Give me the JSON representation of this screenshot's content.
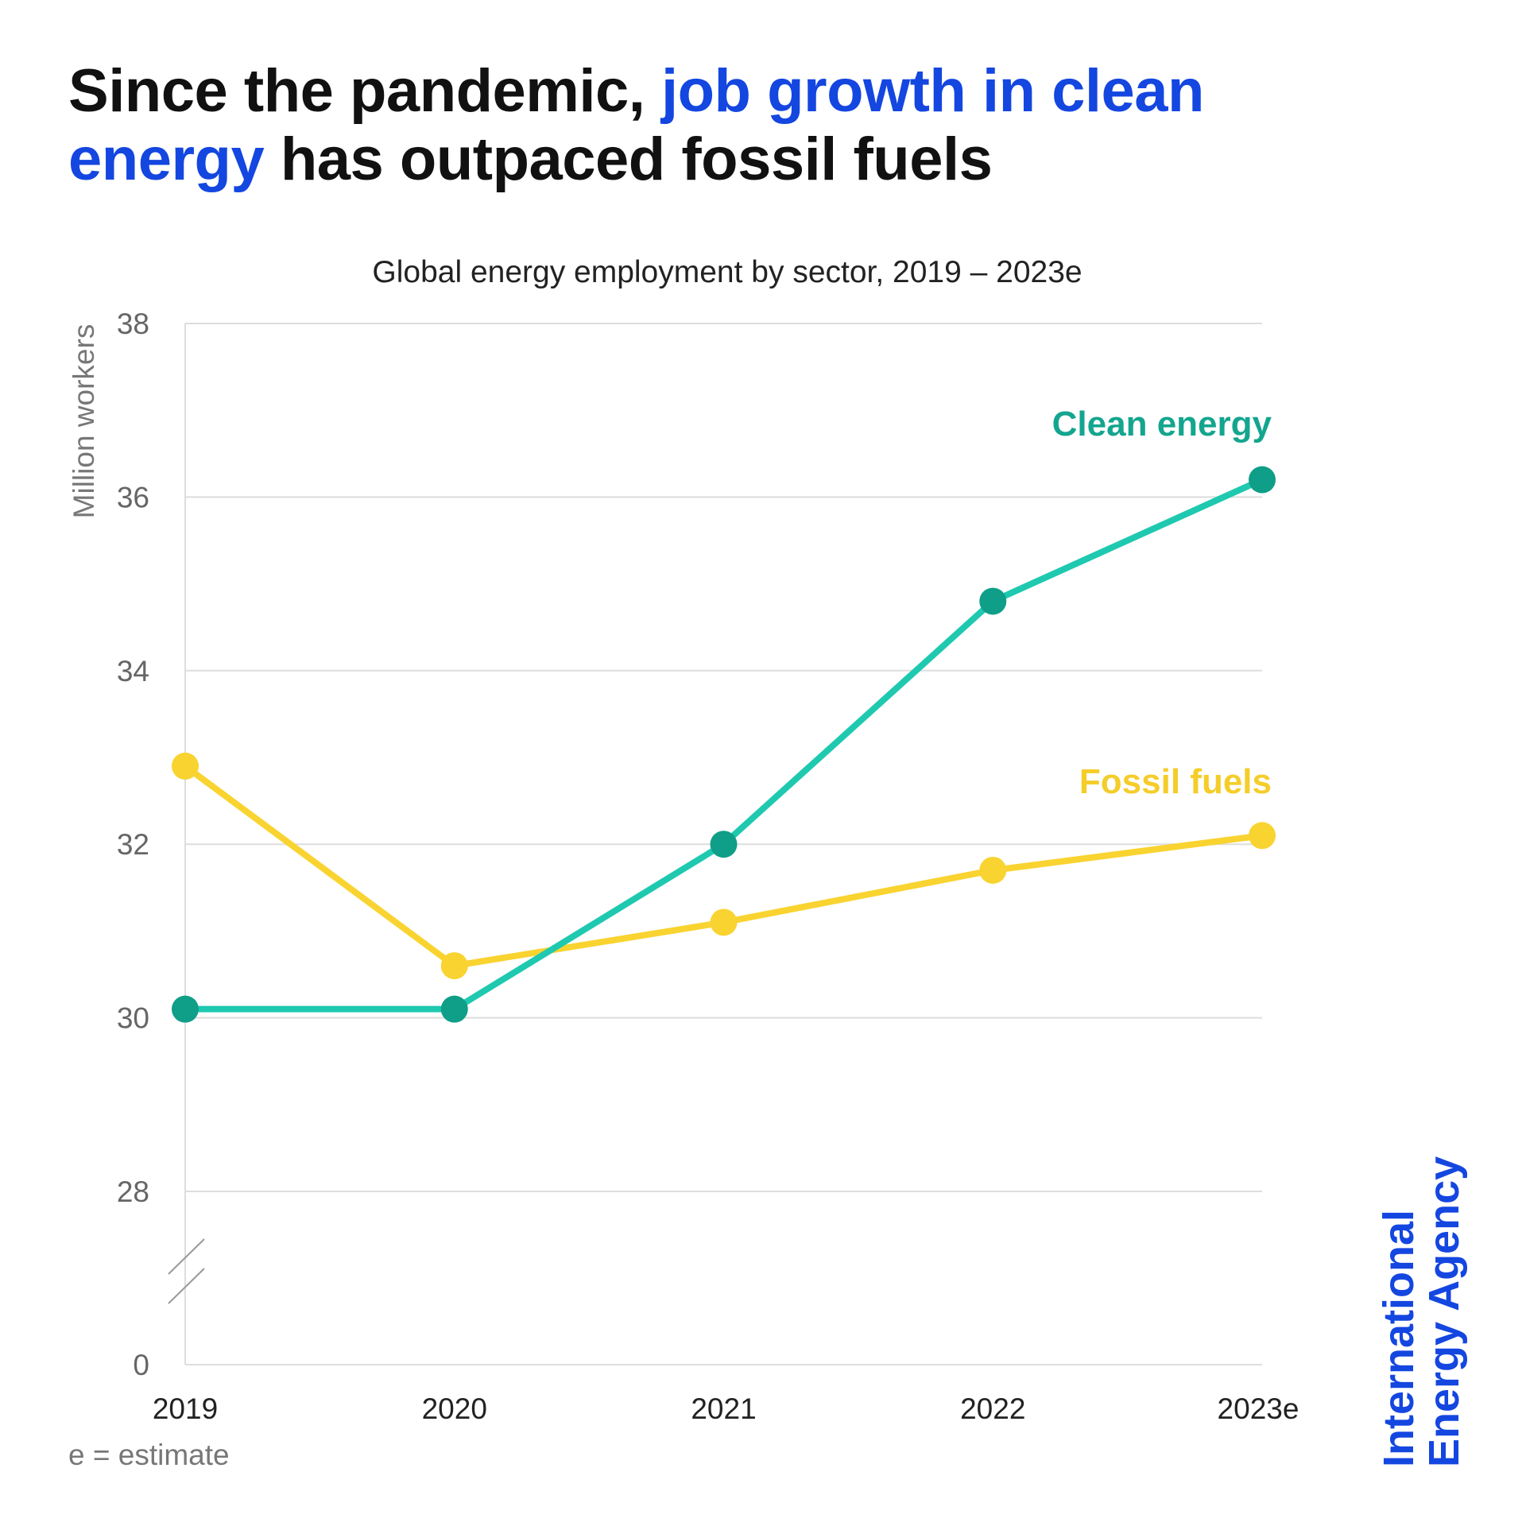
{
  "title": {
    "part1": "Since the pandemic, ",
    "highlight": "job growth in clean energy",
    "part2": " has outpaced fossil fuels"
  },
  "footnote": "e = estimate",
  "logo": {
    "line1": "International",
    "line2": "Energy Agency"
  },
  "colors": {
    "highlight": "#1446e0",
    "clean_line": "#1fc9b0",
    "clean_marker": "#0f9e88",
    "clean_label": "#14a58f",
    "fossil": "#f9d330",
    "fossil_label": "#f5cd2a",
    "grid": "#dddddd"
  },
  "chart_data": {
    "type": "line",
    "title": "Global energy employment by sector, 2019 – 2023e",
    "xlabel": "",
    "ylabel": "Million workers",
    "categories": [
      "2019",
      "2020",
      "2021",
      "2022",
      "2023e"
    ],
    "yticks": [
      "38",
      "36",
      "34",
      "32",
      "30",
      "28",
      "0"
    ],
    "ylim": [
      28,
      38
    ],
    "axis_break": "between 0 and 28",
    "grid": true,
    "series": [
      {
        "name": "Clean energy",
        "values": [
          30.1,
          30.1,
          32.0,
          34.8,
          36.2
        ]
      },
      {
        "name": "Fossil fuels",
        "values": [
          32.9,
          30.6,
          31.1,
          31.7,
          32.1
        ]
      }
    ]
  }
}
